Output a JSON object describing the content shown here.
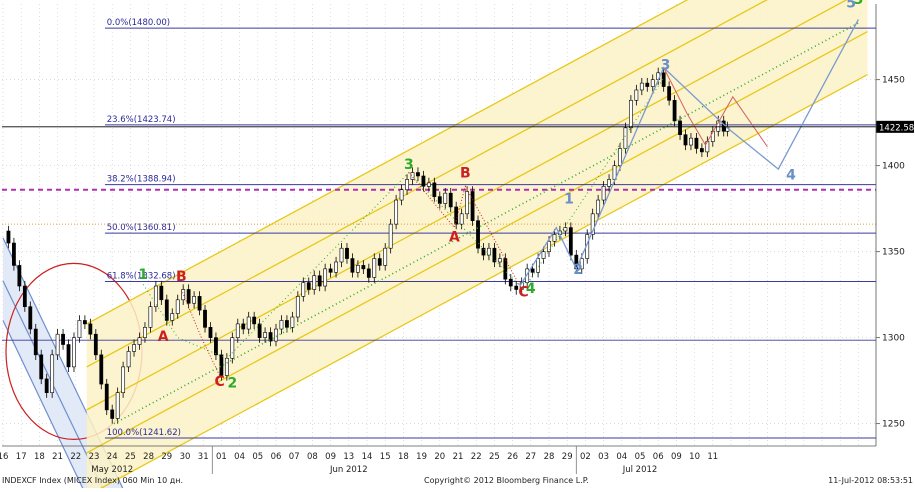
{
  "chart_data": {
    "type": "line",
    "subtype": "candlestick with Fibonacci retracement, Andrews pitchfork channels and Elliott wave labels",
    "instrument": "INDEXCF Index (MICEX Index) 060 Min 10 дн.",
    "copyright": "Copyright© 2012 Bloomberg Finance L.P.",
    "timestamp": "11-Jul-2012 08:53:51",
    "ylim": [
      1237,
      1494
    ],
    "y_ticks": [
      1250,
      1300,
      1350,
      1400,
      1450
    ],
    "y_tick_labels": [
      "1250",
      "1300",
      "1350",
      "1400",
      "1450"
    ],
    "last_price": 1422.58,
    "last_price_label": "1422.58",
    "x_day_labels": [
      "16",
      "17",
      "18",
      "21",
      "22",
      "23",
      "24",
      "25",
      "28",
      "29",
      "30",
      "31",
      "01",
      "04",
      "05",
      "06",
      "07",
      "08",
      "09",
      "13",
      "14",
      "15",
      "18",
      "19",
      "20",
      "21",
      "22",
      "25",
      "26",
      "27",
      "28",
      "29",
      "02",
      "03",
      "04",
      "05",
      "06",
      "09",
      "10",
      "11"
    ],
    "months": [
      {
        "label": "May 2012",
        "day_index": 6
      },
      {
        "label": "Jun 2012",
        "day_index": 19
      },
      {
        "label": "Jul 2012",
        "day_index": 35
      }
    ],
    "month_separators_after": [
      11,
      31
    ],
    "fibonacci_levels": [
      {
        "label": "0.0%(1480.00)",
        "value": 1480.0
      },
      {
        "label": "23.6%(1423.74)",
        "value": 1423.74
      },
      {
        "label": "38.2%(1388.94)",
        "value": 1388.94
      },
      {
        "label": "50.0%(1360.81)",
        "value": 1360.81
      },
      {
        "label": "61.8%(1332.68)",
        "value": 1332.68
      },
      {
        "label": "100.0%(1241.62)",
        "value": 1241.62
      }
    ],
    "support_line": 1298.5,
    "dashed_magenta_level": 1386,
    "orange_dotted_level": 1366,
    "wave_labels": [
      {
        "text": "1",
        "color": "#2eaa2e",
        "x": 7.7,
        "y": 1334
      },
      {
        "text": "2",
        "color": "#2eaa2e",
        "x": 12.6,
        "y": 1271
      },
      {
        "text": "3",
        "color": "#2eaa2e",
        "x": 22.3,
        "y": 1398
      },
      {
        "text": "4",
        "color": "#2eaa2e",
        "x": 29.0,
        "y": 1326
      },
      {
        "text": "5",
        "color": "#2eaa2e",
        "x": 47.0,
        "y": 1494
      },
      {
        "text": "A",
        "color": "#cc2020",
        "x": 8.8,
        "y": 1298
      },
      {
        "text": "B",
        "color": "#cc2020",
        "x": 9.8,
        "y": 1333
      },
      {
        "text": "C",
        "color": "#cc2020",
        "x": 11.9,
        "y": 1272
      },
      {
        "text": "B",
        "color": "#cc2020",
        "x": 25.4,
        "y": 1393
      },
      {
        "text": "A",
        "color": "#cc2020",
        "x": 24.8,
        "y": 1356
      },
      {
        "text": "C",
        "color": "#cc2020",
        "x": 28.6,
        "y": 1324
      },
      {
        "text": "1",
        "color": "#6a8ec6",
        "x": 31.1,
        "y": 1378
      },
      {
        "text": "2",
        "color": "#6a8ec6",
        "x": 31.6,
        "y": 1337
      },
      {
        "text": "3",
        "color": "#6a8ec6",
        "x": 36.4,
        "y": 1456
      },
      {
        "text": "4",
        "color": "#6a8ec6",
        "x": 43.3,
        "y": 1392
      },
      {
        "text": "5",
        "color": "#6a8ec6",
        "x": 46.6,
        "y": 1492
      }
    ],
    "price_path": [
      [
        0.0,
        1362
      ],
      [
        0.3,
        1355
      ],
      [
        0.6,
        1342
      ],
      [
        0.9,
        1330
      ],
      [
        1.2,
        1318
      ],
      [
        1.5,
        1305
      ],
      [
        1.8,
        1290
      ],
      [
        2.1,
        1276
      ],
      [
        2.4,
        1268
      ],
      [
        2.7,
        1290
      ],
      [
        3.0,
        1302
      ],
      [
        3.3,
        1296
      ],
      [
        3.6,
        1283
      ],
      [
        3.9,
        1300
      ],
      [
        4.2,
        1310
      ],
      [
        4.5,
        1308
      ],
      [
        4.8,
        1302
      ],
      [
        5.1,
        1290
      ],
      [
        5.4,
        1273
      ],
      [
        5.7,
        1258
      ],
      [
        6.0,
        1253
      ],
      [
        6.3,
        1268
      ],
      [
        6.6,
        1283
      ],
      [
        6.9,
        1292
      ],
      [
        7.2,
        1296
      ],
      [
        7.5,
        1300
      ],
      [
        7.8,
        1306
      ],
      [
        8.1,
        1318
      ],
      [
        8.4,
        1330
      ],
      [
        8.7,
        1322
      ],
      [
        9.0,
        1310
      ],
      [
        9.3,
        1314
      ],
      [
        9.6,
        1322
      ],
      [
        9.9,
        1328
      ],
      [
        10.2,
        1320
      ],
      [
        10.5,
        1324
      ],
      [
        10.8,
        1316
      ],
      [
        11.1,
        1306
      ],
      [
        11.4,
        1300
      ],
      [
        11.7,
        1290
      ],
      [
        12.0,
        1278
      ],
      [
        12.3,
        1288
      ],
      [
        12.6,
        1300
      ],
      [
        12.9,
        1308
      ],
      [
        13.2,
        1305
      ],
      [
        13.5,
        1312
      ],
      [
        13.8,
        1308
      ],
      [
        14.1,
        1300
      ],
      [
        14.4,
        1303
      ],
      [
        14.7,
        1298
      ],
      [
        15.0,
        1305
      ],
      [
        15.3,
        1310
      ],
      [
        15.6,
        1306
      ],
      [
        15.9,
        1312
      ],
      [
        16.2,
        1324
      ],
      [
        16.5,
        1332
      ],
      [
        16.8,
        1328
      ],
      [
        17.1,
        1336
      ],
      [
        17.4,
        1330
      ],
      [
        17.7,
        1340
      ],
      [
        18.0,
        1338
      ],
      [
        18.3,
        1344
      ],
      [
        18.6,
        1352
      ],
      [
        18.9,
        1346
      ],
      [
        19.2,
        1338
      ],
      [
        19.5,
        1342
      ],
      [
        19.8,
        1340
      ],
      [
        20.1,
        1335
      ],
      [
        20.4,
        1346
      ],
      [
        20.7,
        1342
      ],
      [
        21.0,
        1352
      ],
      [
        21.3,
        1366
      ],
      [
        21.6,
        1380
      ],
      [
        21.9,
        1386
      ],
      [
        22.2,
        1392
      ],
      [
        22.5,
        1396
      ],
      [
        22.8,
        1394
      ],
      [
        23.1,
        1388
      ],
      [
        23.4,
        1390
      ],
      [
        23.7,
        1382
      ],
      [
        24.0,
        1378
      ],
      [
        24.3,
        1384
      ],
      [
        24.6,
        1376
      ],
      [
        24.9,
        1366
      ],
      [
        25.2,
        1372
      ],
      [
        25.5,
        1385
      ],
      [
        25.8,
        1368
      ],
      [
        26.1,
        1352
      ],
      [
        26.4,
        1348
      ],
      [
        26.7,
        1352
      ],
      [
        27.0,
        1344
      ],
      [
        27.3,
        1346
      ],
      [
        27.6,
        1334
      ],
      [
        27.9,
        1330
      ],
      [
        28.2,
        1328
      ],
      [
        28.5,
        1332
      ],
      [
        28.8,
        1340
      ],
      [
        29.1,
        1338
      ],
      [
        29.4,
        1346
      ],
      [
        29.7,
        1350
      ],
      [
        30.0,
        1356
      ],
      [
        30.3,
        1360
      ],
      [
        30.6,
        1362
      ],
      [
        30.9,
        1364
      ],
      [
        31.2,
        1348
      ],
      [
        31.5,
        1340
      ],
      [
        31.8,
        1346
      ],
      [
        32.1,
        1360
      ],
      [
        32.4,
        1372
      ],
      [
        32.7,
        1380
      ],
      [
        33.0,
        1388
      ],
      [
        33.3,
        1392
      ],
      [
        33.6,
        1400
      ],
      [
        33.9,
        1410
      ],
      [
        34.2,
        1422
      ],
      [
        34.5,
        1438
      ],
      [
        34.8,
        1444
      ],
      [
        35.1,
        1448
      ],
      [
        35.4,
        1446
      ],
      [
        35.7,
        1450
      ],
      [
        36.0,
        1454
      ],
      [
        36.3,
        1446
      ],
      [
        36.6,
        1438
      ],
      [
        36.9,
        1426
      ],
      [
        37.2,
        1418
      ],
      [
        37.5,
        1412
      ],
      [
        37.8,
        1416
      ],
      [
        38.1,
        1410
      ],
      [
        38.4,
        1408
      ],
      [
        38.7,
        1414
      ],
      [
        39.0,
        1420
      ],
      [
        39.3,
        1426
      ],
      [
        39.6,
        1420
      ],
      [
        39.8,
        1422.58
      ]
    ],
    "grid": true
  }
}
